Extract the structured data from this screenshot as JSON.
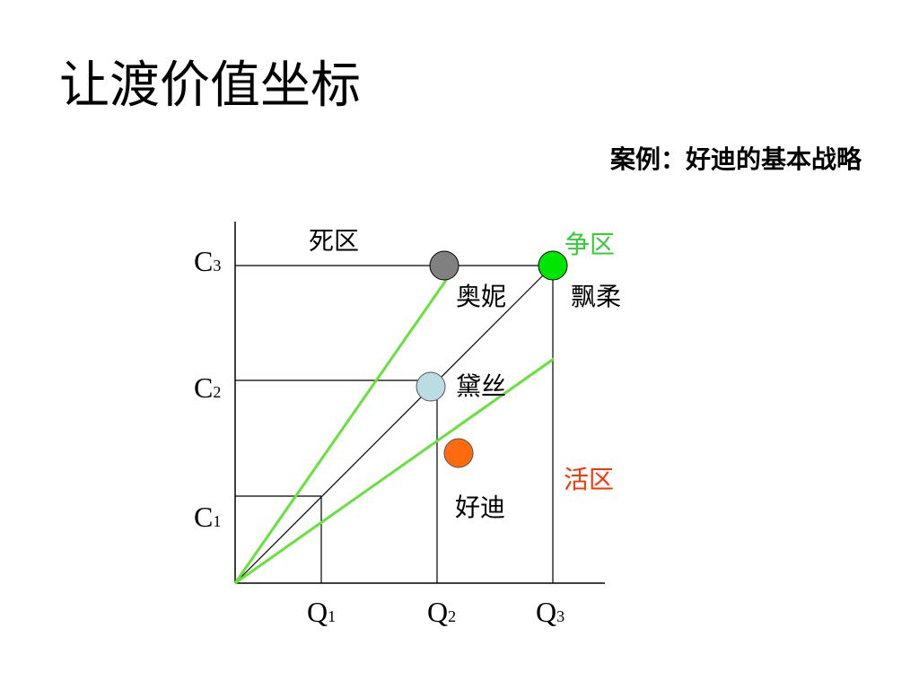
{
  "title": "让渡价值坐标",
  "subtitle": "案例：好迪的基本战略",
  "zones": {
    "dead": "死区",
    "contest": "争区",
    "live": "活区"
  },
  "brands": {
    "aoni": "奥妮",
    "piaorou": "飘柔",
    "daisi": "黛丝",
    "haodi": "好迪"
  },
  "axis": {
    "c_letter": "C",
    "q_letter": "Q",
    "c1": "1",
    "c2": "2",
    "c3": "3",
    "q1": "1",
    "q2": "2",
    "q3": "3"
  },
  "colors": {
    "green_line": "#66e33a",
    "contest_text": "#33cc33",
    "live_text": "#ff3300",
    "aoni_fill": "#808080",
    "piaorou_fill": "#00e600",
    "daisi_fill": "#b9dde3",
    "haodi_fill": "#ff6a0f"
  }
}
